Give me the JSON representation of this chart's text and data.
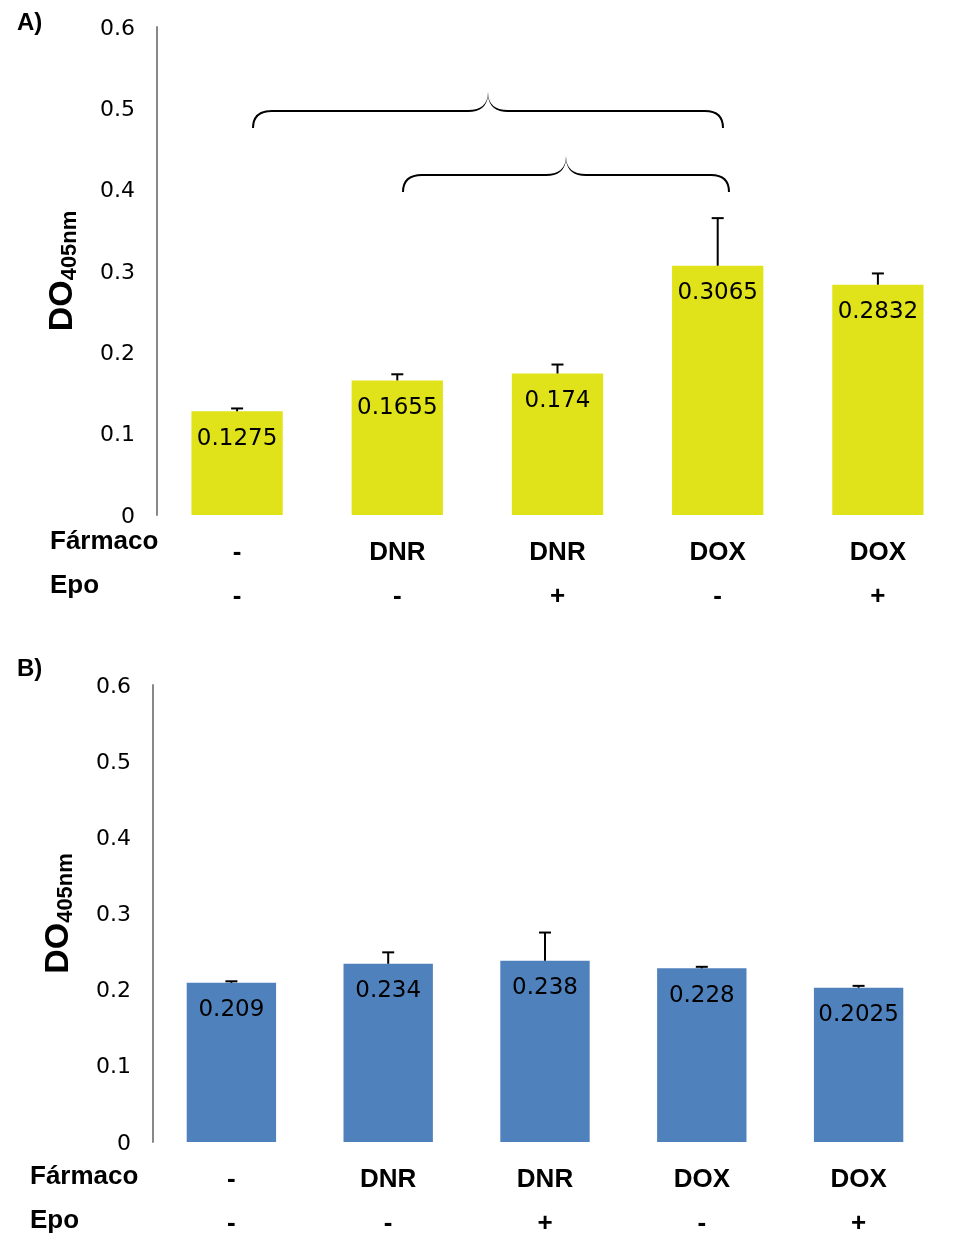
{
  "chart_data": [
    {
      "type": "bar",
      "title": "A)",
      "ylabel": "DO$_{405nm}$",
      "categories": [
        "-\n-",
        "DNR\n-",
        "DNR\n+",
        "DOX\n-",
        "DOX\n+"
      ],
      "values": [
        0.1275,
        0.1655,
        0.174,
        0.3065,
        0.2832
      ],
      "errors": [
        [
          0.1275,
          0.131
        ],
        [
          0.1655,
          0.173
        ],
        [
          0.174,
          0.185
        ],
        [
          0.3065,
          0.365
        ],
        [
          0.2832,
          0.297
        ]
      ],
      "color": "#e1e31a",
      "data_labels": true,
      "annotations": [
        "Fármaco",
        "Epo"
      ],
      "ylim": [
        0,
        0.6
      ],
      "yticks": [
        0,
        0.1,
        0.2,
        0.3,
        0.4,
        0.5,
        0.6
      ],
      "grid": false
    },
    {
      "type": "bar",
      "title": "B)",
      "ylabel": "DO$_{405nm}$",
      "categories": [
        "-\n-",
        "DNR\n-",
        "DNR\n+",
        "DOX\n-",
        "DOX\n+"
      ],
      "values": [
        0.209,
        0.234,
        0.238,
        0.228,
        0.2025
      ],
      "errors": [
        [
          0.209,
          0.211
        ],
        [
          0.234,
          0.249
        ],
        [
          0.238,
          0.275
        ],
        [
          0.228,
          0.23
        ],
        [
          0.2025,
          0.205
        ]
      ],
      "color": "#4f81bd",
      "data_labels": true,
      "annotations": [
        "Fármaco",
        "Epo"
      ],
      "ylim": [
        0,
        0.6
      ],
      "yticks": [
        0,
        0.1,
        0.2,
        0.3,
        0.4,
        0.5,
        0.6
      ],
      "grid": false
    }
  ]
}
